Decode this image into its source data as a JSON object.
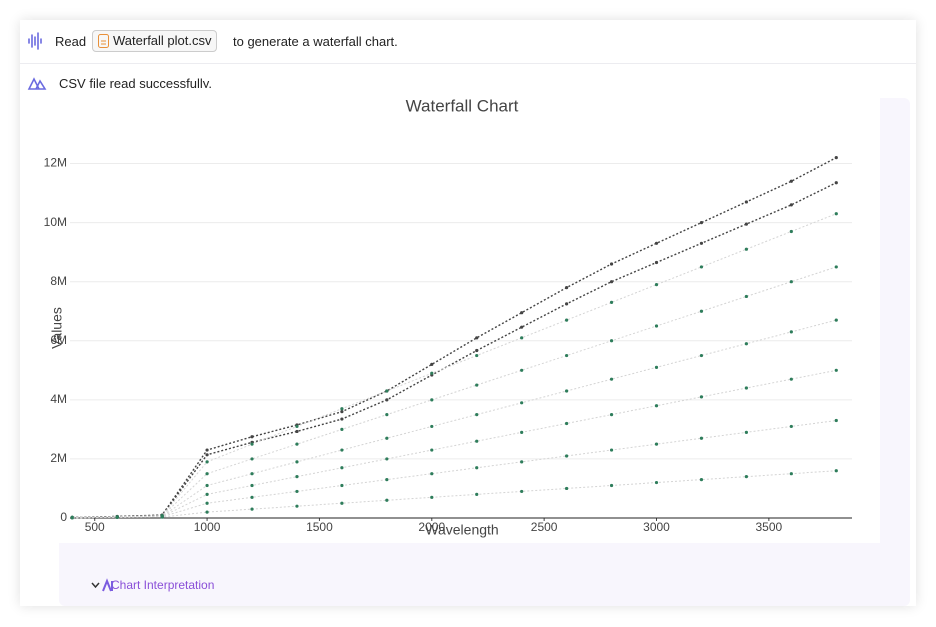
{
  "prompt": {
    "before": "Read",
    "file": "Waterfall plot.csv",
    "after": "to generate a waterfall chart."
  },
  "reply": {
    "status": "CSV file read successfully.",
    "interpretation": "Chart Interpretation"
  },
  "chart_data": {
    "type": "scatter",
    "title": "Waterfall Chart",
    "x_label": "Wavelength",
    "y_label": "Values",
    "x": [
      400,
      600,
      800,
      1000,
      1200,
      1400,
      1600,
      1800,
      2000,
      2200,
      2400,
      2600,
      2800,
      3000,
      3200,
      3400,
      3600,
      3800
    ],
    "series": [
      {
        "color": "#444444",
        "values": [
          0.02,
          0.05,
          0.1,
          2.3,
          2.75,
          3.15,
          3.6,
          4.3,
          5.2,
          6.1,
          6.95,
          7.8,
          8.6,
          9.3,
          10.0,
          10.7,
          11.4,
          12.2
        ]
      },
      {
        "color": "#444444",
        "values": [
          0.02,
          0.05,
          0.09,
          2.14,
          2.56,
          2.93,
          3.35,
          4.0,
          4.84,
          5.67,
          6.46,
          7.25,
          8.0,
          8.65,
          9.3,
          9.95,
          10.6,
          11.35
        ]
      },
      {
        "color": "#2e7d5b",
        "values": [
          0.02,
          0.04,
          0.08,
          1.9,
          2.5,
          3.1,
          3.7,
          4.3,
          4.9,
          5.5,
          6.1,
          6.7,
          7.3,
          7.9,
          8.5,
          9.1,
          9.7,
          10.3
        ]
      },
      {
        "color": "#2e7d5b",
        "values": [
          0.02,
          0.04,
          0.07,
          1.5,
          2.0,
          2.5,
          3.0,
          3.5,
          4.0,
          4.5,
          5.0,
          5.5,
          6.0,
          6.5,
          7.0,
          7.5,
          8.0,
          8.5
        ]
      },
      {
        "color": "#2e7d5b",
        "values": [
          0.01,
          0.03,
          0.06,
          1.1,
          1.5,
          1.9,
          2.3,
          2.7,
          3.1,
          3.5,
          3.9,
          4.3,
          4.7,
          5.1,
          5.5,
          5.9,
          6.3,
          6.7
        ]
      },
      {
        "color": "#2e7d5b",
        "values": [
          0.01,
          0.03,
          0.05,
          0.8,
          1.1,
          1.4,
          1.7,
          2.0,
          2.3,
          2.6,
          2.9,
          3.2,
          3.5,
          3.8,
          4.1,
          4.4,
          4.7,
          5.0
        ]
      },
      {
        "color": "#2e7d5b",
        "values": [
          0.01,
          0.02,
          0.04,
          0.5,
          0.7,
          0.9,
          1.1,
          1.3,
          1.5,
          1.7,
          1.9,
          2.1,
          2.3,
          2.5,
          2.7,
          2.9,
          3.1,
          3.3
        ]
      },
      {
        "color": "#2e7d5b",
        "values": [
          0.01,
          0.02,
          0.03,
          0.2,
          0.3,
          0.4,
          0.5,
          0.6,
          0.7,
          0.8,
          0.9,
          1.0,
          1.1,
          1.2,
          1.3,
          1.4,
          1.5,
          1.6
        ]
      }
    ],
    "xlim": [
      390,
      3870
    ],
    "xticks": [
      500,
      1000,
      1500,
      2000,
      2500,
      3000,
      3500
    ],
    "ylim": [
      0,
      13
    ],
    "yticks": [
      0,
      {
        "value": 2,
        "label": "2M"
      },
      {
        "value": 4,
        "label": "4M"
      },
      {
        "value": 6,
        "label": "6M"
      },
      {
        "value": 8,
        "label": "8M"
      },
      {
        "value": 10,
        "label": "10M"
      },
      {
        "value": 12,
        "label": "12M"
      }
    ],
    "grid": true
  }
}
